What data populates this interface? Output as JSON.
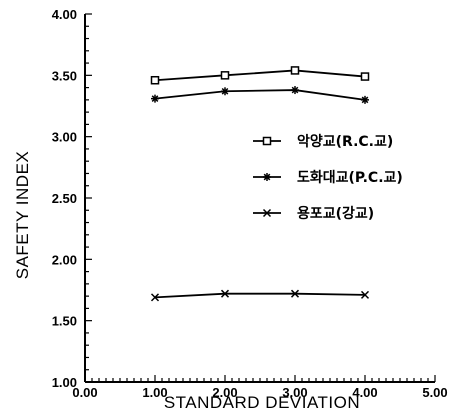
{
  "chart_data": {
    "type": "line",
    "xlabel": "STANDARD  DEVIATION",
    "ylabel": "SAFETY  INDEX",
    "xlim": [
      0,
      5
    ],
    "ylim": [
      1,
      4
    ],
    "x_ticks": [
      "0.00",
      "1.00",
      "2.00",
      "3.00",
      "4.00",
      "5.00"
    ],
    "y_ticks": [
      "1.00",
      "1.50",
      "2.00",
      "2.50",
      "3.00",
      "3.50",
      "4.00"
    ],
    "x": [
      1,
      2,
      3,
      4
    ],
    "series": [
      {
        "name": "악양교(R.C.교)",
        "marker": "square",
        "values": [
          3.46,
          3.5,
          3.54,
          3.49
        ]
      },
      {
        "name": "도화대교(P.C.교)",
        "marker": "star",
        "values": [
          3.31,
          3.37,
          3.38,
          3.3
        ]
      },
      {
        "name": "용포교(강교)",
        "marker": "x",
        "values": [
          1.69,
          1.72,
          1.72,
          1.71
        ]
      }
    ],
    "legend_position": "center-right",
    "grid": false,
    "color": "#000000"
  }
}
